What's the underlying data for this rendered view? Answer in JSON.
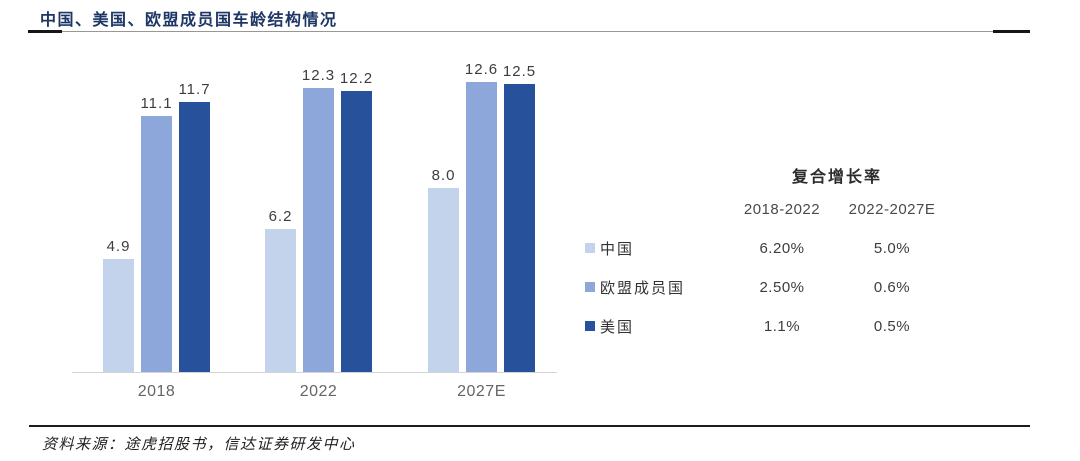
{
  "header": {
    "title": "中国、美国、欧盟成员国车龄结构情况",
    "color": "#1d3666"
  },
  "chart_data": {
    "type": "bar",
    "title": "中国、美国、欧盟成员国车龄结构情况",
    "categories": [
      "2018",
      "2022",
      "2027E"
    ],
    "series": [
      {
        "name": "中国",
        "color": "#c4d3ec",
        "values": [
          4.9,
          6.2,
          8.0
        ]
      },
      {
        "name": "欧盟成员国",
        "color": "#8da7db",
        "values": [
          11.1,
          12.3,
          12.6
        ]
      },
      {
        "name": "美国",
        "color": "#28519b",
        "values": [
          11.7,
          12.2,
          12.5
        ]
      }
    ],
    "xlabel": "",
    "ylabel": "",
    "ylim": [
      0,
      14.1
    ],
    "grid": false,
    "value_labels": true,
    "legend_position": "right-table"
  },
  "growth_table": {
    "title": "复合增长率",
    "columns": [
      "2018-2022",
      "2022-2027E"
    ],
    "rows": [
      {
        "name": "中国",
        "swatch": "#c4d3ec",
        "values": [
          "6.20%",
          "5.0%"
        ]
      },
      {
        "name": "欧盟成员国",
        "swatch": "#8da7db",
        "values": [
          "2.50%",
          "0.6%"
        ]
      },
      {
        "name": "美国",
        "swatch": "#28519b",
        "values": [
          "1.1%",
          "0.5%"
        ]
      }
    ]
  },
  "footer": {
    "source": "资料来源：途虎招股书，信达证券研发中心"
  }
}
